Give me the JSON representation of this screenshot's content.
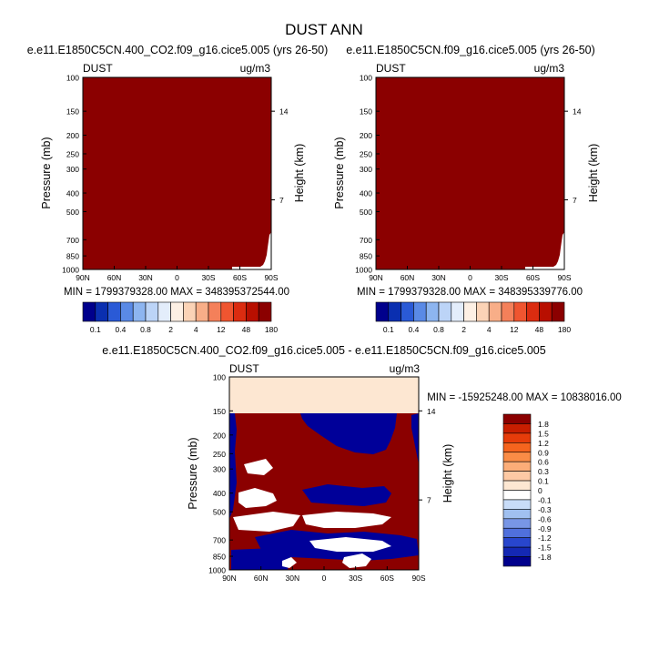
{
  "figure_title": "DUST ANN",
  "colors": {
    "panel_fill": "#8b0000",
    "white": "#ffffff",
    "blue": "#000099",
    "peach": "#fde7d2"
  },
  "panels": {
    "left": {
      "case_title": "e.e11.E1850C5CN.400_CO2.f09_g16.cice5.005 (yrs 26-50)",
      "var_label": "DUST",
      "units": "ug/m3",
      "ylabel": "Pressure (mb)",
      "y2label": "Height (km)",
      "minmax": "MIN = 1799379328.00   MAX = 348395372544.00"
    },
    "right": {
      "case_title": "e.e11.E1850C5CN.f09_g16.cice5.005 (yrs 26-50)",
      "var_label": "DUST",
      "units": "ug/m3",
      "ylabel": "Pressure (mb)",
      "y2label": "Height (km)",
      "minmax": "MIN = 1799379328.00   MAX = 348395339776.00"
    },
    "diff": {
      "case_title": "e.e11.E1850C5CN.400_CO2.f09_g16.cice5.005 - e.e11.E1850C5CN.f09_g16.cice5.005",
      "var_label": "DUST",
      "units": "ug/m3",
      "ylabel": "Pressure (mb)",
      "y2label": "Height (km)",
      "minmax": "MIN = -15925248.00   MAX = 10838016.00"
    }
  },
  "chart_data": [
    {
      "type": "heatmap",
      "title": "e.e11.E1850C5CN.400_CO2.f09_g16.cice5.005 (yrs 26-50)",
      "x_ticks": [
        "90N",
        "60N",
        "30N",
        "0",
        "30S",
        "60S",
        "90S"
      ],
      "y_ticks": [
        "100",
        "150",
        "200",
        "250",
        "300",
        "400",
        "500",
        "700",
        "850",
        "1000"
      ],
      "y_tick_values": [
        100,
        150,
        200,
        250,
        300,
        400,
        500,
        700,
        850,
        1000
      ],
      "y2_ticks": [
        "14",
        "7"
      ],
      "y2_tick_pressures": [
        150,
        434
      ],
      "xlim": [
        -90,
        90
      ],
      "ylim": [
        1000,
        100
      ],
      "y_scale": "log",
      "field": "above 180 ug/m3 everywhere except lower-right corner (southern high-latitude surface) which is near 0",
      "colorbar": {
        "labels": [
          "0.1",
          "0.4",
          "0.8",
          "2",
          "4",
          "12",
          "48",
          "180"
        ],
        "colors": [
          "#00008c",
          "#0a2fb0",
          "#2a5ad6",
          "#5a8ae6",
          "#8db5f0",
          "#bcd4f7",
          "#e3edfb",
          "#fdf0e4",
          "#fbd3b6",
          "#f8ae88",
          "#f4805a",
          "#ef5530",
          "#db2c10",
          "#b80f00",
          "#8b0000"
        ]
      }
    },
    {
      "type": "heatmap",
      "title": "e.e11.E1850C5CN.f09_g16.cice5.005 (yrs 26-50)",
      "x_ticks": [
        "90N",
        "60N",
        "30N",
        "0",
        "30S",
        "60S",
        "90S"
      ],
      "y_ticks": [
        "100",
        "150",
        "200",
        "250",
        "300",
        "400",
        "500",
        "700",
        "850",
        "1000"
      ],
      "y_tick_values": [
        100,
        150,
        200,
        250,
        300,
        400,
        500,
        700,
        850,
        1000
      ],
      "y2_ticks": [
        "14",
        "7"
      ],
      "y2_tick_pressures": [
        150,
        434
      ],
      "xlim": [
        -90,
        90
      ],
      "ylim": [
        1000,
        100
      ],
      "y_scale": "log",
      "field": "above 180 ug/m3 everywhere except lower-right corner (southern high-latitude surface) which is near 0",
      "colorbar": {
        "labels": [
          "0.1",
          "0.4",
          "0.8",
          "2",
          "4",
          "12",
          "48",
          "180"
        ],
        "colors": [
          "#00008c",
          "#0a2fb0",
          "#2a5ad6",
          "#5a8ae6",
          "#8db5f0",
          "#bcd4f7",
          "#e3edfb",
          "#fdf0e4",
          "#fbd3b6",
          "#f8ae88",
          "#f4805a",
          "#ef5530",
          "#db2c10",
          "#b80f00",
          "#8b0000"
        ]
      }
    },
    {
      "type": "heatmap",
      "title": "e.e11.E1850C5CN.400_CO2.f09_g16.cice5.005 - e.e11.E1850C5CN.f09_g16.cice5.005",
      "x_ticks": [
        "90N",
        "60N",
        "30N",
        "0",
        "30S",
        "60S",
        "90S"
      ],
      "y_ticks": [
        "100",
        "150",
        "200",
        "250",
        "300",
        "400",
        "500",
        "700",
        "850",
        "1000"
      ],
      "y_tick_values": [
        100,
        150,
        200,
        250,
        300,
        400,
        500,
        700,
        850,
        1000
      ],
      "y2_ticks": [
        "14",
        "7"
      ],
      "y2_tick_pressures": [
        150,
        434
      ],
      "xlim": [
        -90,
        90
      ],
      "ylim": [
        1000,
        100
      ],
      "y_scale": "log",
      "field": "near 0 above 150 mb; mixed >1.8 (dark red) and <-1.8 (dark blue) below 150 mb with white near-zero bands in the mid troposphere",
      "colorbar": {
        "labels": [
          "1.8",
          "1.5",
          "1.2",
          "0.9",
          "0.6",
          "0.3",
          "0.1",
          "0",
          "-0.1",
          "-0.3",
          "-0.6",
          "-0.9",
          "-1.2",
          "-1.5",
          "-1.8"
        ],
        "colors": [
          "#8b0000",
          "#c81e00",
          "#e63c0a",
          "#f5641e",
          "#fa8c46",
          "#fcad78",
          "#fdc9a4",
          "#fde7d2",
          "#ffffff",
          "#c8dcf8",
          "#a0c0f0",
          "#7896e6",
          "#5070dc",
          "#2846cd",
          "#1428b4",
          "#00008c"
        ]
      }
    }
  ]
}
